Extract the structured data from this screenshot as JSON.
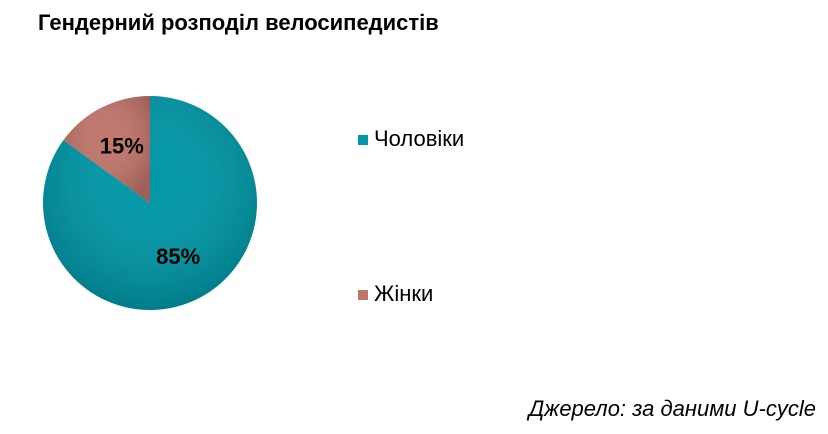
{
  "chart_data": {
    "type": "pie",
    "title": "Гендерний розподіл велосипедистів",
    "categories": [
      "Чоловіки",
      "Жінки"
    ],
    "values": [
      85,
      15
    ],
    "value_labels": [
      "85%",
      "15%"
    ],
    "colors": [
      "#0097a7",
      "#c0756b"
    ],
    "source": "Джерело: за даними U-cycle"
  }
}
